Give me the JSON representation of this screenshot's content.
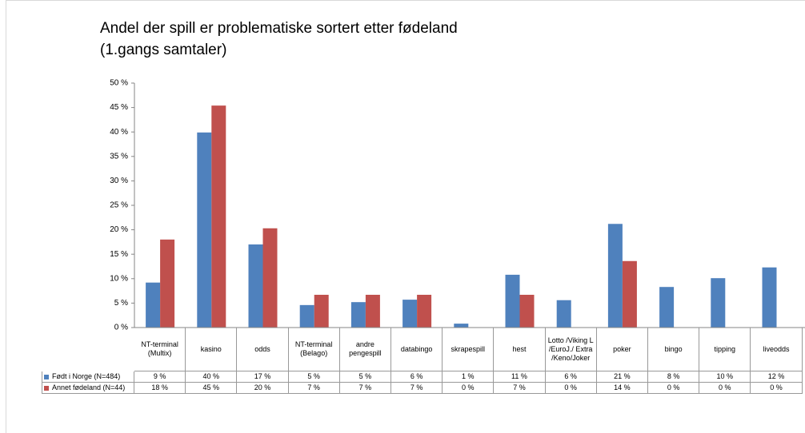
{
  "chart_data": {
    "type": "bar",
    "title": [
      "Andel der spill er problematiske sortert etter fødeland",
      "(1.gangs samtaler)"
    ],
    "categories": [
      "NT-terminal (Multix)",
      "kasino",
      "odds",
      "NT-terminal (Belago)",
      "andre pengespill",
      "databingo",
      "skrapespill",
      "hest",
      "Lotto /Viking L /EuroJ./ Extra /Keno/Joker",
      "poker",
      "bingo",
      "tipping",
      "liveodds"
    ],
    "series": [
      {
        "name": "Født i Norge (N=484)",
        "color": "#4f81bd",
        "values": [
          9.2,
          39.9,
          17.0,
          4.6,
          5.2,
          5.7,
          0.8,
          10.8,
          5.6,
          21.2,
          8.3,
          10.1,
          12.3
        ],
        "value_labels": [
          "9 %",
          "40 %",
          "17 %",
          "5 %",
          "5 %",
          "6 %",
          "1 %",
          "11 %",
          "6 %",
          "21 %",
          "8 %",
          "10 %",
          "12 %"
        ]
      },
      {
        "name": "Annet fødeland (N=44)",
        "color": "#c0504d",
        "values": [
          18.0,
          45.4,
          20.3,
          6.7,
          6.7,
          6.7,
          0,
          6.7,
          0,
          13.6,
          0,
          0,
          0
        ],
        "value_labels": [
          "18 %",
          "45 %",
          "20 %",
          "7 %",
          "7 %",
          "7 %",
          "0 %",
          "7 %",
          "0 %",
          "14 %",
          "0 %",
          "0 %",
          "0 %"
        ]
      }
    ],
    "ylim": [
      0,
      50
    ],
    "yticks": [
      {
        "value": 0,
        "label": "0 %"
      },
      {
        "value": 5,
        "label": "5 %"
      },
      {
        "value": 10,
        "label": "10 %"
      },
      {
        "value": 15,
        "label": "15 %"
      },
      {
        "value": 20,
        "label": "20 %"
      },
      {
        "value": 25,
        "label": "25 %"
      },
      {
        "value": 30,
        "label": "30 %"
      },
      {
        "value": 35,
        "label": "35 %"
      },
      {
        "value": 40,
        "label": "40 %"
      },
      {
        "value": 45,
        "label": "45 %"
      },
      {
        "value": 50,
        "label": "50 %"
      }
    ],
    "grid": false
  }
}
